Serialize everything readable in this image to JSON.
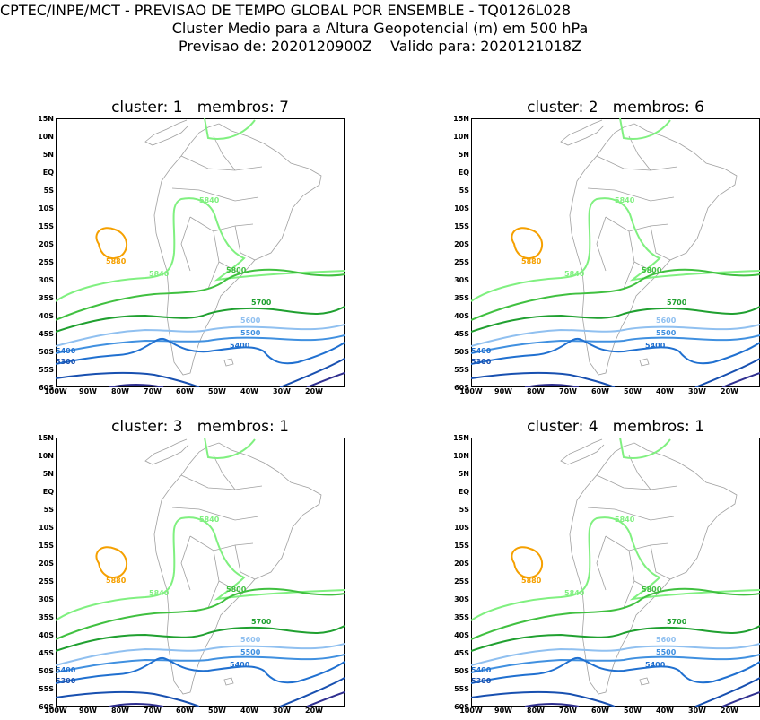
{
  "header": {
    "line1": "CPTEC/INPE/MCT - PREVISAO DE TEMPO GLOBAL POR ENSEMBLE - TQ0126L028",
    "line2": "Cluster Medio para a Altura Geopotencial (m) em 500 hPa",
    "line3": "Previsao de: 2020120900Z    Valido para: 2020121018Z"
  },
  "axes": {
    "lat_labels": [
      "15N",
      "10N",
      "5N",
      "EQ",
      "5S",
      "10S",
      "15S",
      "20S",
      "25S",
      "30S",
      "35S",
      "40S",
      "45S",
      "50S",
      "55S",
      "60S"
    ],
    "lon_labels": [
      "100W",
      "90W",
      "80W",
      "70W",
      "60W",
      "50W",
      "40W",
      "30W",
      "20W"
    ]
  },
  "colors": {
    "c5880": "#f5a000",
    "c5840": "#80f080",
    "c5800": "#40c040",
    "c5700": "#20a030",
    "c5600": "#90c0f0",
    "c5500": "#4090e0",
    "c5400": "#2070d0",
    "c5300": "#1850b0",
    "c5200": "#303090",
    "coast": "#a0a0a0"
  },
  "panels": [
    {
      "title": "cluster: 1   membros: 7",
      "contour_labels": {
        "l5880": "5880",
        "l5840a": "5840",
        "l5840b": "5840",
        "l5800": "5800",
        "l5700": "5700",
        "l5600": "5600",
        "l5500": "5500",
        "l5400a": "5400",
        "l5400b": "5400",
        "l5300": "5300"
      }
    },
    {
      "title": "cluster: 2   membros: 6",
      "contour_labels": {
        "l5880": "5880",
        "l5840a": "5840",
        "l5840b": "5840",
        "l5800": "5800",
        "l5700": "5700",
        "l5600": "5600",
        "l5500": "5500",
        "l5400a": "5400",
        "l5400b": "5400",
        "l5300": "5300"
      }
    },
    {
      "title": "cluster: 3   membros: 1",
      "contour_labels": {
        "l5880": "5880",
        "l5840a": "5840",
        "l5840b": "5840",
        "l5800": "5800",
        "l5700": "5700",
        "l5600": "5600",
        "l5500": "5500",
        "l5400a": "5400",
        "l5400b": "5400",
        "l5300": "5300"
      }
    },
    {
      "title": "cluster: 4   membros: 1",
      "contour_labels": {
        "l5880": "5880",
        "l5840a": "5840",
        "l5840b": "5840",
        "l5800": "5800",
        "l5700": "5700",
        "l5600": "5600",
        "l5500": "5500",
        "l5400a": "5400",
        "l5400b": "5400",
        "l5300": "5300"
      }
    }
  ]
}
